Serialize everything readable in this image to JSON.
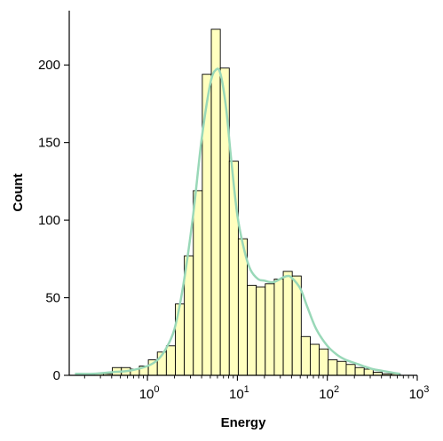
{
  "chart_data": {
    "type": "bar",
    "xlabel": "Energy",
    "ylabel": "Count",
    "x_scale": "log10",
    "xlim": [
      0.135,
      1000
    ],
    "ylim": [
      0,
      235
    ],
    "x_ticks": [
      {
        "value": 1,
        "base": "10",
        "exp": "0"
      },
      {
        "value": 10,
        "base": "10",
        "exp": "1"
      },
      {
        "value": 100,
        "base": "10",
        "exp": "2"
      },
      {
        "value": 1000,
        "base": "10",
        "exp": "3"
      }
    ],
    "y_ticks": [
      0,
      50,
      100,
      150,
      200
    ],
    "grid": false,
    "legend": "none",
    "bar_color": "#ffffbf",
    "bar_edge_color": "#000000",
    "kde_color": "#99d8b8",
    "bins": [
      {
        "x0": 0.162,
        "x1": 0.204,
        "count": 1
      },
      {
        "x0": 0.204,
        "x1": 0.257,
        "count": 1
      },
      {
        "x0": 0.257,
        "x1": 0.324,
        "count": 1
      },
      {
        "x0": 0.324,
        "x1": 0.407,
        "count": 1
      },
      {
        "x0": 0.407,
        "x1": 0.513,
        "count": 5
      },
      {
        "x0": 0.513,
        "x1": 0.646,
        "count": 5
      },
      {
        "x0": 0.646,
        "x1": 0.813,
        "count": 4
      },
      {
        "x0": 0.813,
        "x1": 1.023,
        "count": 6
      },
      {
        "x0": 1.023,
        "x1": 1.288,
        "count": 10
      },
      {
        "x0": 1.288,
        "x1": 1.622,
        "count": 15
      },
      {
        "x0": 1.622,
        "x1": 2.042,
        "count": 19
      },
      {
        "x0": 2.042,
        "x1": 2.57,
        "count": 46
      },
      {
        "x0": 2.57,
        "x1": 3.236,
        "count": 77
      },
      {
        "x0": 3.236,
        "x1": 4.074,
        "count": 119
      },
      {
        "x0": 4.074,
        "x1": 5.129,
        "count": 194
      },
      {
        "x0": 5.129,
        "x1": 6.457,
        "count": 223
      },
      {
        "x0": 6.457,
        "x1": 8.128,
        "count": 198
      },
      {
        "x0": 8.128,
        "x1": 10.233,
        "count": 138
      },
      {
        "x0": 10.233,
        "x1": 12.882,
        "count": 88
      },
      {
        "x0": 12.882,
        "x1": 16.218,
        "count": 58
      },
      {
        "x0": 16.218,
        "x1": 20.417,
        "count": 57
      },
      {
        "x0": 20.417,
        "x1": 25.704,
        "count": 59
      },
      {
        "x0": 25.704,
        "x1": 32.359,
        "count": 62
      },
      {
        "x0": 32.359,
        "x1": 40.738,
        "count": 67
      },
      {
        "x0": 40.738,
        "x1": 51.286,
        "count": 64
      },
      {
        "x0": 51.286,
        "x1": 64.565,
        "count": 25
      },
      {
        "x0": 64.565,
        "x1": 81.283,
        "count": 20
      },
      {
        "x0": 81.283,
        "x1": 102.329,
        "count": 17
      },
      {
        "x0": 102.329,
        "x1": 128.825,
        "count": 10
      },
      {
        "x0": 128.825,
        "x1": 162.181,
        "count": 9
      },
      {
        "x0": 162.181,
        "x1": 204.174,
        "count": 7
      },
      {
        "x0": 204.174,
        "x1": 257.04,
        "count": 5
      },
      {
        "x0": 257.04,
        "x1": 323.594,
        "count": 4
      },
      {
        "x0": 323.594,
        "x1": 407.38,
        "count": 2
      },
      {
        "x0": 407.38,
        "x1": 512.861,
        "count": 1
      },
      {
        "x0": 512.861,
        "x1": 645.654,
        "count": 1
      }
    ],
    "kde": {
      "x": [
        0.16,
        0.25,
        0.4,
        0.63,
        1.0,
        1.3,
        1.6,
        2.0,
        2.5,
        3.2,
        4.0,
        5.0,
        5.8,
        6.5,
        7.5,
        8.5,
        10.0,
        12.0,
        14.0,
        17.0,
        20.0,
        25.0,
        32.0,
        36.0,
        40.0,
        50.0,
        60.0,
        75.0,
        100.0,
        130.0,
        160.0,
        200.0,
        250.0,
        320.0,
        400.0,
        500.0,
        630.0
      ],
      "y": [
        1,
        1,
        2,
        3,
        6,
        10,
        17,
        30,
        58,
        102,
        152,
        188,
        197,
        194,
        172,
        140,
        103,
        80,
        68,
        62,
        61,
        60,
        63,
        64,
        63,
        56,
        44,
        30,
        19,
        13,
        10,
        8,
        6,
        4,
        3,
        2,
        1
      ]
    }
  }
}
